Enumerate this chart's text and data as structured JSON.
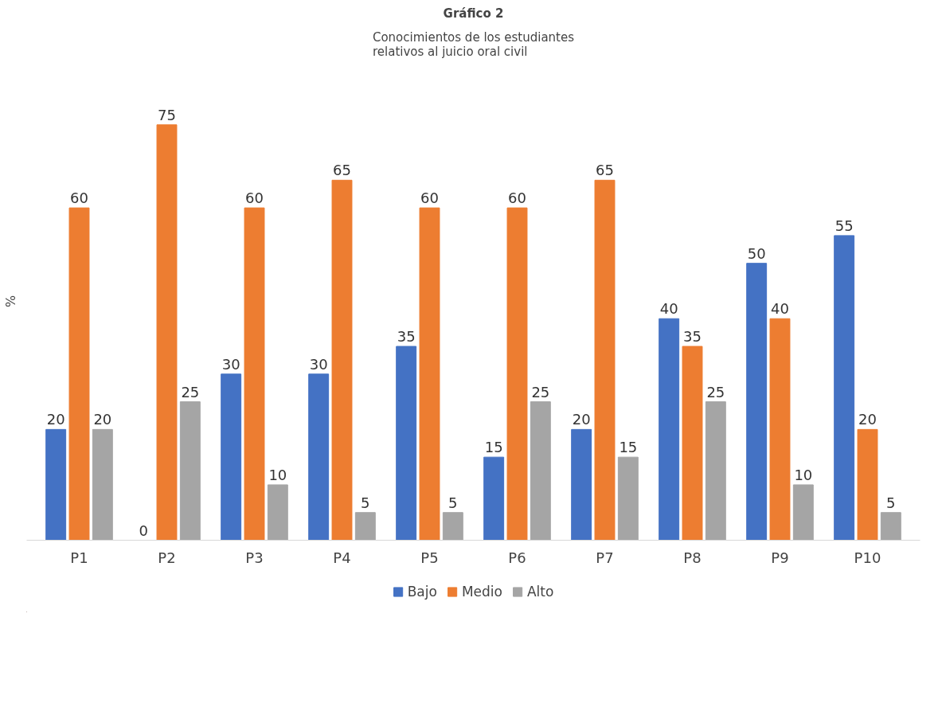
{
  "chart_data": {
    "type": "bar",
    "title": "Gráfico 2",
    "subtitle": "Conocimientos de los estudiantes\nrelativos al juicio oral civil",
    "ylabel": "%",
    "categories": [
      "P1",
      "P2",
      "P3",
      "P4",
      "P5",
      "P6",
      "P7",
      "P8",
      "P9",
      "P10"
    ],
    "series": [
      {
        "name": "Bajo",
        "color": "#4472c4",
        "values": [
          20,
          0,
          30,
          30,
          35,
          15,
          20,
          40,
          50,
          55
        ]
      },
      {
        "name": "Medio",
        "color": "#ed7d31",
        "values": [
          60,
          75,
          60,
          65,
          60,
          60,
          65,
          35,
          40,
          20
        ]
      },
      {
        "name": "Alto",
        "color": "#a5a5a5",
        "values": [
          20,
          25,
          10,
          5,
          5,
          25,
          15,
          25,
          10,
          5
        ]
      }
    ],
    "data_labels": true,
    "legend": "bottom",
    "grid": false,
    "tick_labels": "x"
  }
}
